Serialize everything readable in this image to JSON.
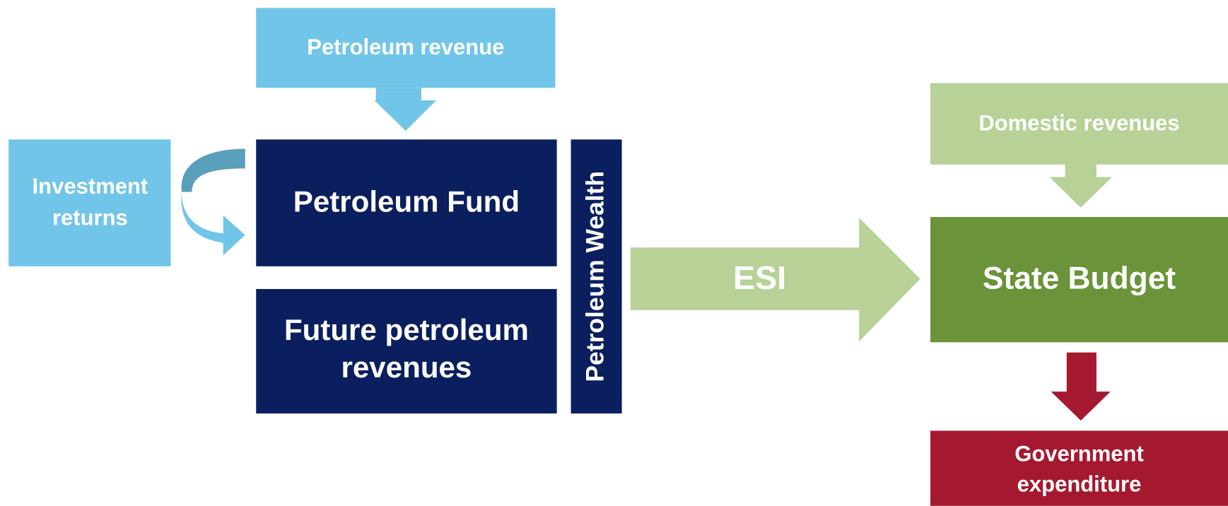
{
  "nodes": [
    {
      "id": "petroleum-revenue",
      "lines": [
        "Petroleum revenue"
      ]
    },
    {
      "id": "investment-returns",
      "lines": [
        "Investment",
        "returns"
      ]
    },
    {
      "id": "petroleum-fund",
      "lines": [
        "Petroleum Fund"
      ]
    },
    {
      "id": "future-revenues",
      "lines": [
        "Future petroleum",
        "revenues"
      ]
    },
    {
      "id": "petroleum-wealth",
      "lines": [
        "Petroleum Wealth"
      ]
    },
    {
      "id": "esi",
      "lines": [
        "ESI"
      ]
    },
    {
      "id": "domestic-revenues",
      "lines": [
        "Domestic revenues"
      ]
    },
    {
      "id": "state-budget",
      "lines": [
        "State Budget"
      ]
    },
    {
      "id": "government-expenditure",
      "lines": [
        "Government",
        "expenditure"
      ]
    }
  ]
}
